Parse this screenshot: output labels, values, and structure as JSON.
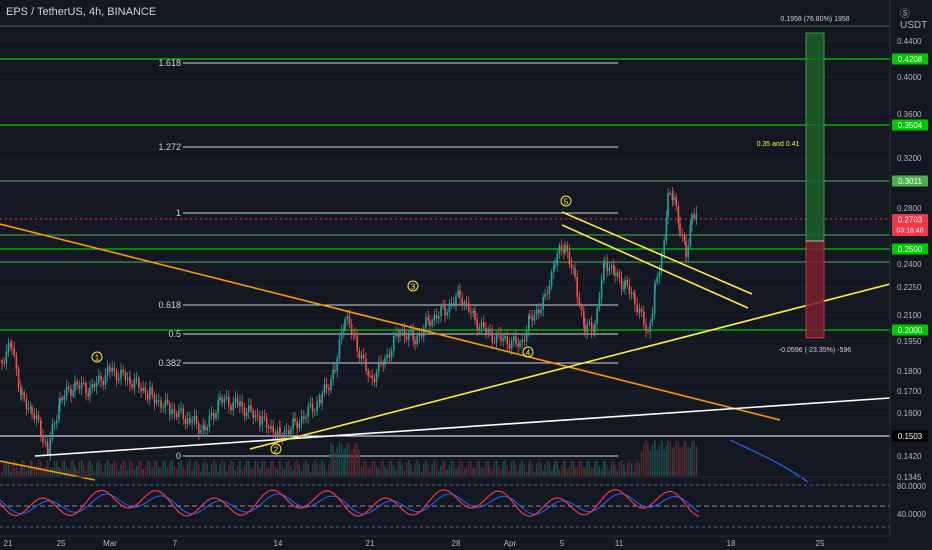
{
  "header": {
    "symbol": "EPS / TetherUS, 4h, BINANCE"
  },
  "axis": {
    "currency_icon": "dollar-circle-icon",
    "currency": "USDT",
    "price_ticks": [
      "0.4400",
      "0.4000",
      "0.3600",
      "0.3200",
      "0.2800",
      "0.2400",
      "0.2250",
      "0.2100",
      "0.1950",
      "0.1800",
      "0.1700",
      "0.1600",
      "0.1420",
      "0.1345",
      "80.0000",
      "40.0000"
    ],
    "date_ticks": [
      "21",
      "25",
      "Mar",
      "7",
      "14",
      "21",
      "28",
      "Apr",
      "5",
      "11",
      "18",
      "25"
    ]
  },
  "price_badges": [
    {
      "text": "0.4208",
      "color": "#00c800"
    },
    {
      "text": "0.3504",
      "color": "#00c800"
    },
    {
      "text": "0.3011",
      "color": "#4caf50"
    },
    {
      "text": "0.2703",
      "sub": "03:18:48",
      "color": "#f23645"
    },
    {
      "text": "0.2500",
      "color": "#00c800"
    },
    {
      "text": "0.2000",
      "color": "#00c800"
    },
    {
      "text": "0.1503",
      "color": "#000000"
    }
  ],
  "fib_labels": [
    "1.618",
    "1.272",
    "1",
    "0.618",
    "0.5",
    "0.382",
    "0"
  ],
  "wave_labels": [
    "1",
    "2",
    "3",
    "4",
    "5"
  ],
  "annotations": {
    "target": "0.1958 (76.80%) 1958",
    "note": "0.35 and 0.41",
    "stop": "-0.0596 (-23.35%) -596"
  },
  "colors": {
    "background": "#131722",
    "green_level": "#00c800",
    "trend_yellow": "#ffeb3b",
    "trend_orange": "#ff9800",
    "candle_up": "#26a69a",
    "candle_down": "#ef5350"
  }
}
